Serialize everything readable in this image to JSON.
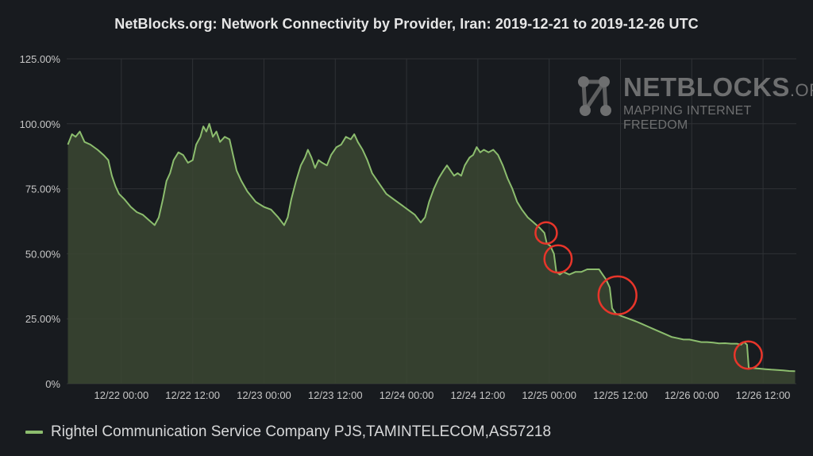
{
  "chart_data": {
    "type": "area",
    "title": "NetBlocks.org: Network Connectivity by Provider, Iran: 2019-12-21 to 2019-12-26 UTC",
    "xlabel": "",
    "ylabel": "",
    "ylim": [
      0,
      125
    ],
    "yticks": [
      "0%",
      "25.00%",
      "50.00%",
      "75.00%",
      "100.00%",
      "125.00%"
    ],
    "xticks": [
      "12/22 00:00",
      "12/22 12:00",
      "12/23 00:00",
      "12/23 12:00",
      "12/24 00:00",
      "12/24 12:00",
      "12/25 00:00",
      "12/25 12:00",
      "12/26 00:00",
      "12/26 12:00"
    ],
    "xrange_hours": [
      -9.2,
      113.6
    ],
    "grid": true,
    "legend": "bottom-left",
    "colors": {
      "line": "#8cbd6e",
      "fill": "#3b4632",
      "highlight": "#e8352a"
    },
    "series": [
      {
        "name": "Rightel Communication Service Company PJS,TAMINTELECOM,AS57218",
        "points": [
          [
            -9.0,
            92
          ],
          [
            -8.3,
            96
          ],
          [
            -7.7,
            95
          ],
          [
            -7.0,
            97
          ],
          [
            -6.2,
            93
          ],
          [
            -5.2,
            92
          ],
          [
            -4.0,
            90
          ],
          [
            -3.0,
            88
          ],
          [
            -2.2,
            86
          ],
          [
            -1.6,
            80
          ],
          [
            -1.0,
            76
          ],
          [
            -0.4,
            73
          ],
          [
            0.5,
            71
          ],
          [
            1.6,
            68
          ],
          [
            2.6,
            66
          ],
          [
            3.6,
            65
          ],
          [
            4.6,
            63
          ],
          [
            5.6,
            61
          ],
          [
            6.3,
            64
          ],
          [
            7.0,
            71
          ],
          [
            7.6,
            78
          ],
          [
            8.2,
            81
          ],
          [
            8.8,
            86
          ],
          [
            9.6,
            89
          ],
          [
            10.4,
            88
          ],
          [
            11.2,
            85
          ],
          [
            12.0,
            86
          ],
          [
            12.6,
            92
          ],
          [
            13.3,
            95
          ],
          [
            13.8,
            99
          ],
          [
            14.3,
            97
          ],
          [
            14.8,
            100
          ],
          [
            15.4,
            95
          ],
          [
            16.0,
            97
          ],
          [
            16.6,
            93
          ],
          [
            17.4,
            95
          ],
          [
            18.2,
            94
          ],
          [
            18.8,
            88
          ],
          [
            19.4,
            82
          ],
          [
            20.2,
            78
          ],
          [
            21.2,
            74
          ],
          [
            22.6,
            70
          ],
          [
            24.0,
            68
          ],
          [
            25.2,
            67
          ],
          [
            26.4,
            64
          ],
          [
            27.4,
            61
          ],
          [
            28.0,
            64
          ],
          [
            28.6,
            71
          ],
          [
            29.4,
            78
          ],
          [
            30.2,
            84
          ],
          [
            30.9,
            87
          ],
          [
            31.4,
            90
          ],
          [
            32.0,
            87
          ],
          [
            32.6,
            83
          ],
          [
            33.2,
            86
          ],
          [
            33.8,
            85
          ],
          [
            34.6,
            84
          ],
          [
            35.3,
            88
          ],
          [
            36.2,
            91
          ],
          [
            37.0,
            92
          ],
          [
            37.8,
            95
          ],
          [
            38.6,
            94
          ],
          [
            39.2,
            96
          ],
          [
            39.8,
            93
          ],
          [
            40.6,
            90
          ],
          [
            41.4,
            86
          ],
          [
            42.2,
            81
          ],
          [
            43.4,
            77
          ],
          [
            44.6,
            73
          ],
          [
            45.8,
            71
          ],
          [
            47.0,
            69
          ],
          [
            48.2,
            67
          ],
          [
            49.4,
            65
          ],
          [
            50.4,
            62
          ],
          [
            51.1,
            64
          ],
          [
            51.8,
            70
          ],
          [
            52.6,
            75
          ],
          [
            53.4,
            79
          ],
          [
            54.2,
            82
          ],
          [
            54.8,
            84
          ],
          [
            55.4,
            82
          ],
          [
            56.0,
            80
          ],
          [
            56.6,
            81
          ],
          [
            57.2,
            80
          ],
          [
            57.8,
            84
          ],
          [
            58.6,
            87
          ],
          [
            59.2,
            88
          ],
          [
            59.8,
            91
          ],
          [
            60.4,
            89
          ],
          [
            61.0,
            90
          ],
          [
            61.8,
            89
          ],
          [
            62.6,
            90
          ],
          [
            63.4,
            88
          ],
          [
            64.2,
            84
          ],
          [
            65.0,
            79
          ],
          [
            65.8,
            75
          ],
          [
            66.6,
            70
          ],
          [
            67.4,
            67
          ],
          [
            68.4,
            64
          ],
          [
            69.4,
            62
          ],
          [
            70.4,
            60
          ],
          [
            71.2,
            58
          ],
          [
            71.6,
            54
          ],
          [
            72.2,
            53
          ],
          [
            72.8,
            50
          ],
          [
            73.2,
            43
          ],
          [
            73.8,
            42
          ],
          [
            74.4,
            43
          ],
          [
            75.4,
            42
          ],
          [
            76.4,
            43
          ],
          [
            77.4,
            43
          ],
          [
            78.4,
            44
          ],
          [
            79.4,
            44
          ],
          [
            80.4,
            44
          ],
          [
            81.0,
            42
          ],
          [
            81.6,
            40
          ],
          [
            82.2,
            37
          ],
          [
            82.6,
            29
          ],
          [
            83.2,
            27
          ],
          [
            84.2,
            26
          ],
          [
            85.4,
            25
          ],
          [
            86.6,
            24
          ],
          [
            87.6,
            23
          ],
          [
            88.6,
            22
          ],
          [
            89.6,
            21
          ],
          [
            90.6,
            20
          ],
          [
            91.6,
            19
          ],
          [
            92.6,
            18
          ],
          [
            93.6,
            17.5
          ],
          [
            94.6,
            17
          ],
          [
            95.6,
            17
          ],
          [
            96.6,
            16.5
          ],
          [
            97.6,
            16
          ],
          [
            98.6,
            16
          ],
          [
            99.6,
            15.8
          ],
          [
            100.6,
            15.5
          ],
          [
            101.6,
            15.6
          ],
          [
            102.6,
            15.4
          ],
          [
            103.6,
            15.4
          ],
          [
            104.3,
            15
          ],
          [
            104.8,
            16
          ],
          [
            105.3,
            15
          ],
          [
            105.6,
            6
          ],
          [
            106.4,
            6
          ],
          [
            107.4,
            5.8
          ],
          [
            108.4,
            5.6
          ],
          [
            109.4,
            5.4
          ],
          [
            110.4,
            5.3
          ],
          [
            111.4,
            5.1
          ],
          [
            112.4,
            4.9
          ],
          [
            113.4,
            4.8
          ]
        ]
      }
    ],
    "highlights": [
      {
        "x": 71.5,
        "y": 58,
        "r_hours": 1.8
      },
      {
        "x": 73.5,
        "y": 48,
        "r_hours": 2.3
      },
      {
        "x": 83.5,
        "y": 34,
        "r_hours": 3.2
      },
      {
        "x": 105.5,
        "y": 11,
        "r_hours": 2.3
      }
    ]
  },
  "watermark": {
    "title": "NETBLOCKS",
    "org": ".ORG",
    "subtitle": "MAPPING INTERNET FREEDOM"
  }
}
